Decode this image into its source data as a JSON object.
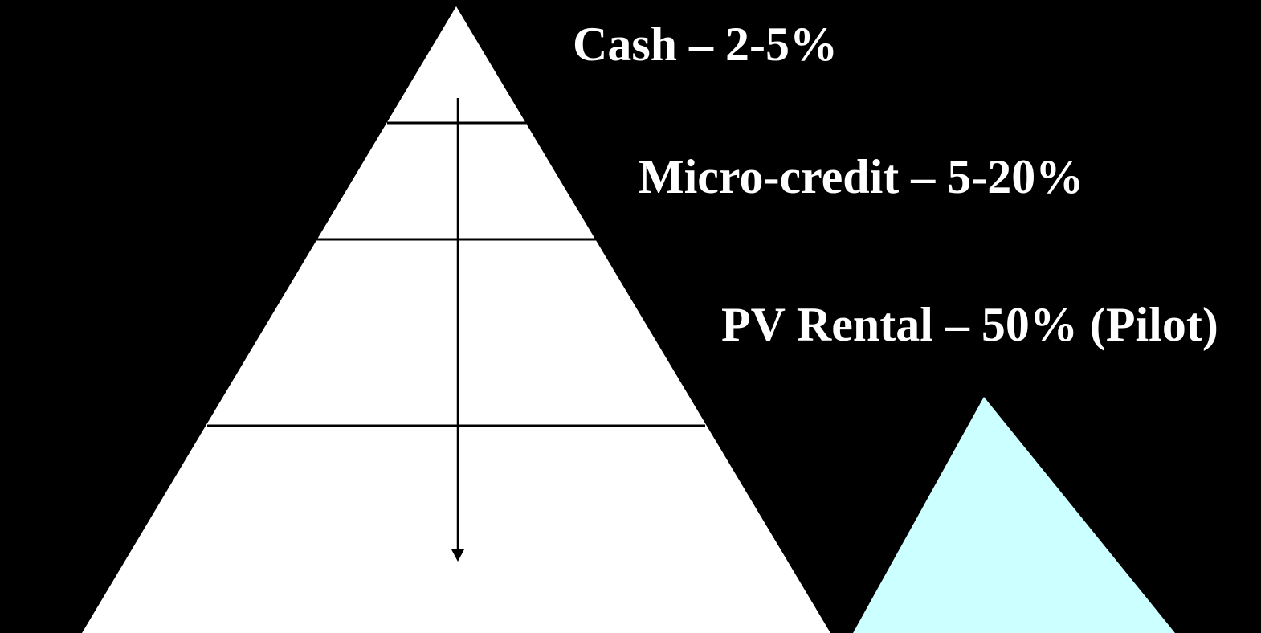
{
  "labels": [
    "Cash – 2-5%",
    "Micro-credit – 5-20%",
    "PV Rental – 50% (Pilot)"
  ]
}
